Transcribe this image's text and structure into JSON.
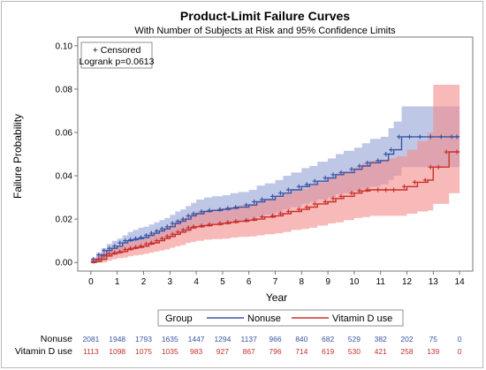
{
  "chart_data": {
    "type": "line",
    "title": "Product-Limit Failure Curves",
    "subtitle": "With Number of Subjects at Risk and 95% Confidence Limits",
    "xlabel": "Year",
    "ylabel": "Failure Probability",
    "xlim": [
      -0.5,
      14.5
    ],
    "ylim": [
      -0.004,
      0.104
    ],
    "x_ticks": [
      0,
      1,
      2,
      3,
      4,
      5,
      6,
      7,
      8,
      9,
      10,
      11,
      12,
      13,
      14
    ],
    "y_ticks": [
      0.0,
      0.02,
      0.04,
      0.06,
      0.08,
      0.1
    ],
    "y_tick_labels": [
      "0.00",
      "0.02",
      "0.04",
      "0.06",
      "0.08",
      "0.10"
    ],
    "inset": {
      "censored_label": "+ Censored",
      "logrank_label": "Logrank p=0.0613"
    },
    "legend": {
      "title": "Group",
      "placement": "bottom"
    },
    "series": [
      {
        "name": "Nonuse",
        "color": "#3a55a4",
        "band_color": "#a9b4de",
        "x": [
          0,
          0.2,
          0.4,
          0.6,
          0.8,
          1.0,
          1.2,
          1.4,
          1.6,
          1.8,
          2.0,
          2.2,
          2.4,
          2.6,
          2.8,
          3.0,
          3.2,
          3.4,
          3.6,
          3.8,
          4.0,
          4.3,
          4.6,
          5.0,
          5.3,
          5.6,
          6.0,
          6.3,
          6.6,
          7.0,
          7.3,
          7.6,
          8.0,
          8.3,
          8.6,
          9.0,
          9.3,
          9.6,
          10.0,
          10.3,
          10.6,
          11.0,
          11.3,
          11.5,
          11.8,
          12.2,
          12.6,
          13.0,
          13.4,
          13.8,
          14.0
        ],
        "y": [
          0,
          0.0015,
          0.0035,
          0.0055,
          0.0065,
          0.0075,
          0.009,
          0.01,
          0.0105,
          0.011,
          0.0115,
          0.0125,
          0.0135,
          0.0145,
          0.0155,
          0.0165,
          0.018,
          0.019,
          0.02,
          0.0215,
          0.0225,
          0.0235,
          0.024,
          0.0245,
          0.025,
          0.0255,
          0.0265,
          0.028,
          0.029,
          0.0305,
          0.032,
          0.0335,
          0.035,
          0.036,
          0.0375,
          0.039,
          0.0405,
          0.0415,
          0.043,
          0.0445,
          0.046,
          0.047,
          0.05,
          0.052,
          0.058,
          0.058,
          0.058,
          0.058,
          0.058,
          0.058,
          0.058
        ],
        "lower": [
          0,
          0.0,
          0.001,
          0.0025,
          0.0035,
          0.0045,
          0.0055,
          0.006,
          0.0065,
          0.007,
          0.0075,
          0.0085,
          0.009,
          0.01,
          0.011,
          0.0115,
          0.0125,
          0.0135,
          0.014,
          0.0155,
          0.016,
          0.017,
          0.0175,
          0.018,
          0.0185,
          0.019,
          0.02,
          0.021,
          0.022,
          0.023,
          0.0245,
          0.0255,
          0.027,
          0.028,
          0.029,
          0.03,
          0.0315,
          0.032,
          0.033,
          0.034,
          0.035,
          0.036,
          0.038,
          0.04,
          0.044,
          0.044,
          0.044,
          0.044,
          0.044,
          0.044,
          0.044
        ],
        "upper": [
          0.002,
          0.0045,
          0.0065,
          0.0085,
          0.01,
          0.011,
          0.0125,
          0.014,
          0.015,
          0.016,
          0.0165,
          0.0175,
          0.0185,
          0.0195,
          0.0205,
          0.022,
          0.0235,
          0.0245,
          0.026,
          0.0275,
          0.029,
          0.03,
          0.0305,
          0.031,
          0.032,
          0.0325,
          0.0335,
          0.0355,
          0.0365,
          0.038,
          0.04,
          0.0415,
          0.0435,
          0.0445,
          0.0465,
          0.048,
          0.05,
          0.0515,
          0.053,
          0.055,
          0.057,
          0.058,
          0.062,
          0.065,
          0.072,
          0.072,
          0.072,
          0.072,
          0.072,
          0.072,
          0.072
        ],
        "at_risk": [
          "2081",
          "1948",
          "1793",
          "1635",
          "1447",
          "1294",
          "1137",
          "966",
          "840",
          "682",
          "529",
          "382",
          "202",
          "75",
          "0"
        ]
      },
      {
        "name": "Vitamin D use",
        "color": "#c8302a",
        "band_color": "#f48a8a",
        "x": [
          0,
          0.2,
          0.4,
          0.6,
          0.8,
          1.0,
          1.2,
          1.4,
          1.6,
          1.8,
          2.0,
          2.2,
          2.4,
          2.6,
          2.8,
          3.0,
          3.2,
          3.4,
          3.6,
          3.8,
          4.0,
          4.3,
          4.6,
          5.0,
          5.3,
          5.6,
          6.0,
          6.3,
          6.6,
          7.0,
          7.3,
          7.6,
          8.0,
          8.3,
          8.6,
          9.0,
          9.3,
          9.6,
          10.0,
          10.3,
          10.6,
          11.0,
          11.3,
          11.6,
          12.0,
          12.4,
          12.8,
          13.0,
          13.3,
          13.6,
          14.0
        ],
        "y": [
          0,
          0.0005,
          0.0015,
          0.003,
          0.004,
          0.0045,
          0.005,
          0.006,
          0.0065,
          0.007,
          0.0075,
          0.0085,
          0.009,
          0.01,
          0.011,
          0.012,
          0.013,
          0.014,
          0.015,
          0.016,
          0.0165,
          0.017,
          0.0175,
          0.018,
          0.0185,
          0.019,
          0.0195,
          0.02,
          0.021,
          0.0215,
          0.0225,
          0.0235,
          0.0245,
          0.0255,
          0.027,
          0.028,
          0.0295,
          0.0305,
          0.032,
          0.033,
          0.0335,
          0.0335,
          0.0335,
          0.0335,
          0.035,
          0.037,
          0.038,
          0.044,
          0.044,
          0.051,
          0.051
        ],
        "lower": [
          0,
          0.0,
          0.0,
          0.0008,
          0.0015,
          0.002,
          0.0022,
          0.0028,
          0.0032,
          0.0035,
          0.004,
          0.0045,
          0.005,
          0.0055,
          0.006,
          0.0068,
          0.0075,
          0.008,
          0.009,
          0.0095,
          0.01,
          0.0105,
          0.0108,
          0.011,
          0.0115,
          0.0118,
          0.012,
          0.0125,
          0.013,
          0.0135,
          0.014,
          0.015,
          0.0155,
          0.016,
          0.017,
          0.018,
          0.0185,
          0.0195,
          0.0205,
          0.021,
          0.0215,
          0.0215,
          0.0215,
          0.0215,
          0.0225,
          0.0235,
          0.024,
          0.027,
          0.027,
          0.032,
          0.032
        ],
        "upper": [
          0.0015,
          0.003,
          0.0045,
          0.006,
          0.007,
          0.0075,
          0.0085,
          0.0095,
          0.01,
          0.0105,
          0.011,
          0.0125,
          0.0135,
          0.015,
          0.016,
          0.0175,
          0.019,
          0.02,
          0.0215,
          0.0225,
          0.0235,
          0.024,
          0.0245,
          0.025,
          0.0255,
          0.0265,
          0.027,
          0.028,
          0.029,
          0.03,
          0.0315,
          0.033,
          0.034,
          0.0355,
          0.037,
          0.039,
          0.041,
          0.042,
          0.044,
          0.046,
          0.047,
          0.0475,
          0.048,
          0.049,
          0.052,
          0.056,
          0.06,
          0.082,
          0.082,
          0.082,
          0.082
        ],
        "at_risk": [
          "1113",
          "1098",
          "1075",
          "1035",
          "983",
          "927",
          "867",
          "796",
          "714",
          "619",
          "530",
          "421",
          "258",
          "139",
          "0"
        ]
      }
    ]
  }
}
